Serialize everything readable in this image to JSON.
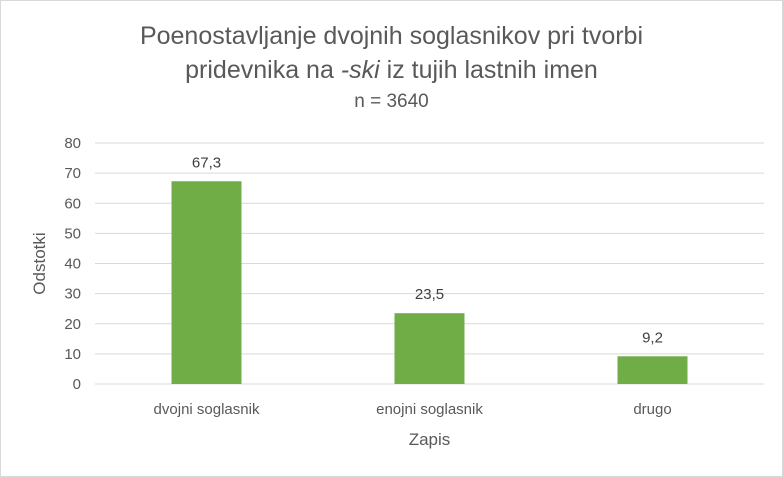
{
  "chart_data": {
    "type": "bar",
    "title_line1": "Poenostavljanje dvojnih soglasnikov pri tvorbi",
    "title_line2_pre": "pridevnika na ",
    "title_line2_em": "-ski",
    "title_line2_post": " iz tujih lastnih imen",
    "subtitle": "n = 3640",
    "xlabel": "Zapis",
    "ylabel": "Odstotki",
    "categories": [
      "dvojni soglasnik",
      "enojni soglasnik",
      "drugo"
    ],
    "values": [
      67.3,
      23.5,
      9.2
    ],
    "data_labels": [
      "67,3",
      "23,5",
      "9,2"
    ],
    "yticks": [
      "0",
      "10",
      "20",
      "30",
      "40",
      "50",
      "60",
      "70",
      "80"
    ],
    "ylim": [
      0,
      80
    ],
    "grid": true,
    "legend": "none",
    "colors": {
      "bar": "#70ad47",
      "grid": "#d9d9d9",
      "text": "#595959"
    }
  }
}
